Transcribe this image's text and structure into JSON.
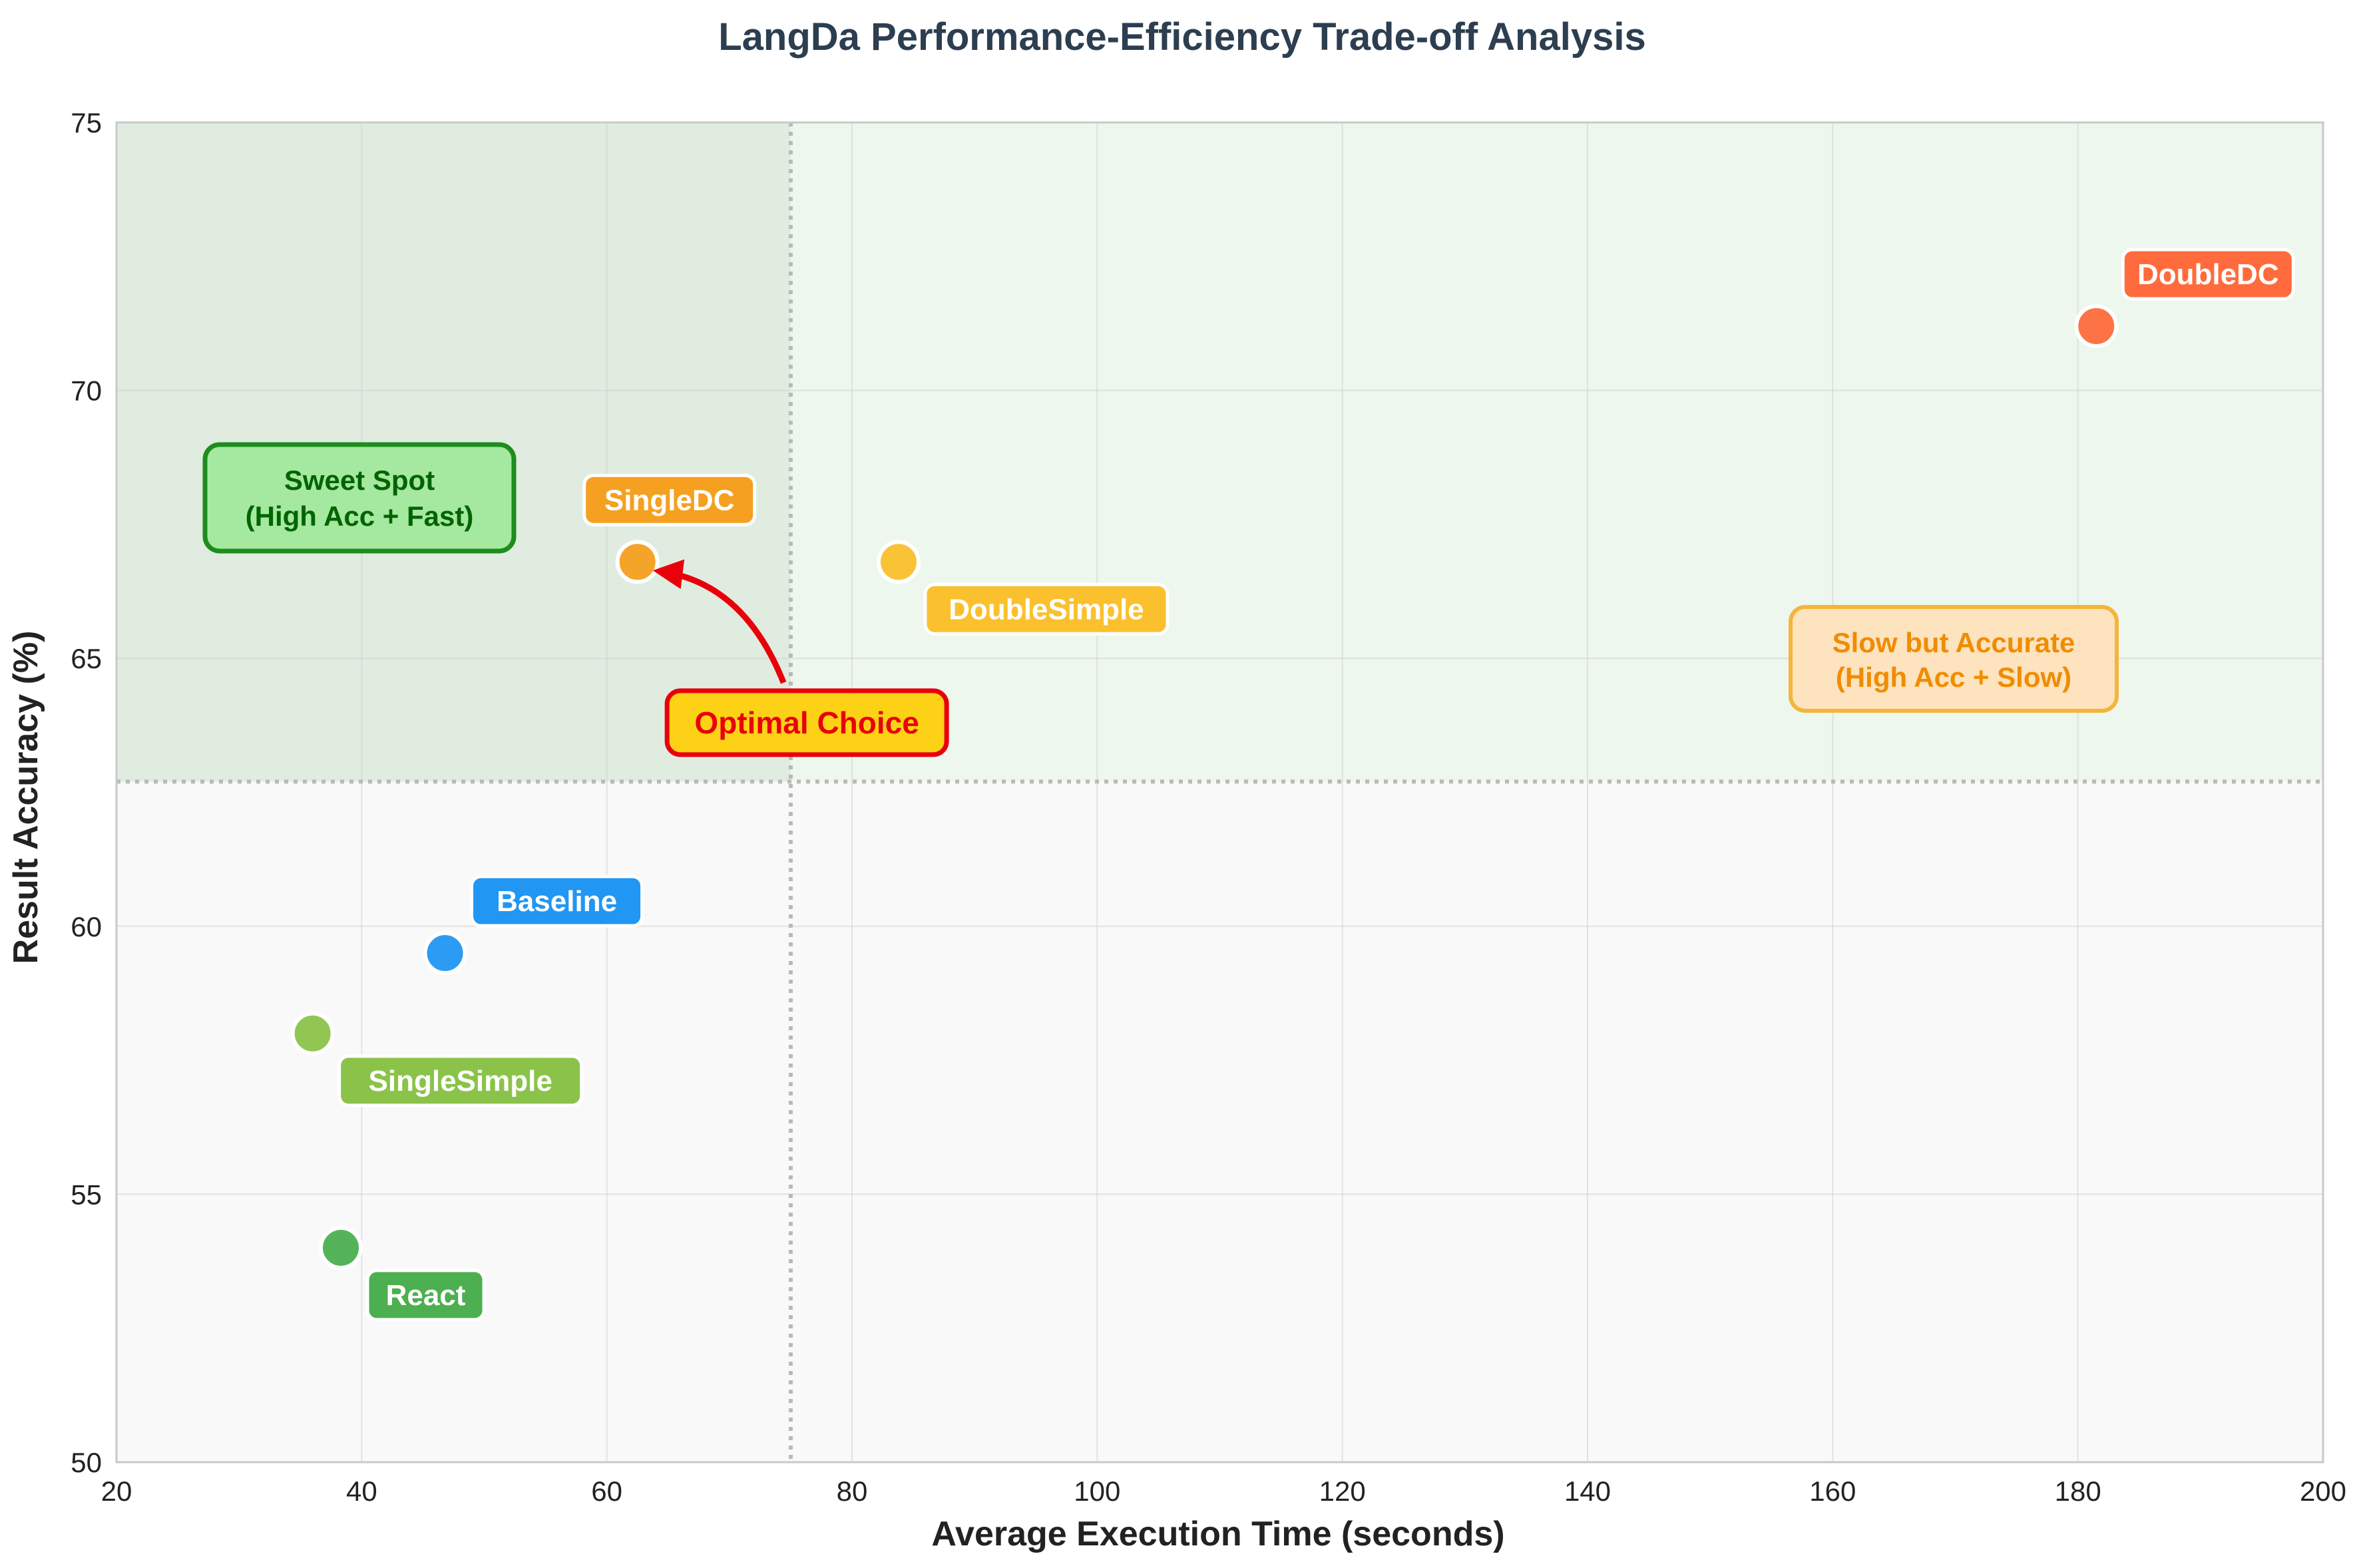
{
  "chart_data": {
    "type": "scatter",
    "title": "LangDa Performance-Efficiency Trade-off Analysis",
    "xlabel": "Average Execution Time (seconds)",
    "ylabel": "Result Accuracy (%)",
    "xlim": [
      20,
      200
    ],
    "ylim": [
      50,
      75
    ],
    "xticks": [
      "20",
      "40",
      "60",
      "80",
      "100",
      "120",
      "140",
      "160",
      "180",
      "200"
    ],
    "yticks": [
      "50",
      "55",
      "60",
      "65",
      "70",
      "75"
    ],
    "grid": true,
    "threshold_x": 75,
    "threshold_y": 62.7,
    "points": [
      {
        "name": "DoubleDC",
        "x": 181.5,
        "y": 71.2,
        "color": "#ff6b3d",
        "label_pos": "top-right"
      },
      {
        "name": "SingleDC",
        "x": 62.5,
        "y": 66.8,
        "color": "#f5a020",
        "label_pos": "top"
      },
      {
        "name": "DoubleSimple",
        "x": 83.8,
        "y": 66.8,
        "color": "#fbc02d",
        "label_pos": "bottom-right"
      },
      {
        "name": "Baseline",
        "x": 46.8,
        "y": 59.5,
        "color": "#2196f3",
        "label_pos": "top-right"
      },
      {
        "name": "SingleSimple",
        "x": 36.0,
        "y": 58.0,
        "color": "#8bc34a",
        "label_pos": "bottom-right"
      },
      {
        "name": "React",
        "x": 38.3,
        "y": 54.0,
        "color": "#4caf50",
        "label_pos": "bottom-right"
      }
    ],
    "annotations": {
      "sweet_spot": {
        "line1": "Sweet Spot",
        "line2": "(High Acc + Fast)",
        "color": "#1e8c1e",
        "fill": "#a5e8a0"
      },
      "slow_accurate": {
        "line1": "Slow but Accurate",
        "line2": "(High Acc + Slow)",
        "color": "#f08c00",
        "border": "#f5b53a",
        "fill": "#fde3be"
      },
      "optimal": {
        "text": "Optimal Choice",
        "color": "#e8000b",
        "fill": "#fcd116",
        "x": 75.5,
        "y": 63.8,
        "target": "SingleDC"
      }
    }
  }
}
